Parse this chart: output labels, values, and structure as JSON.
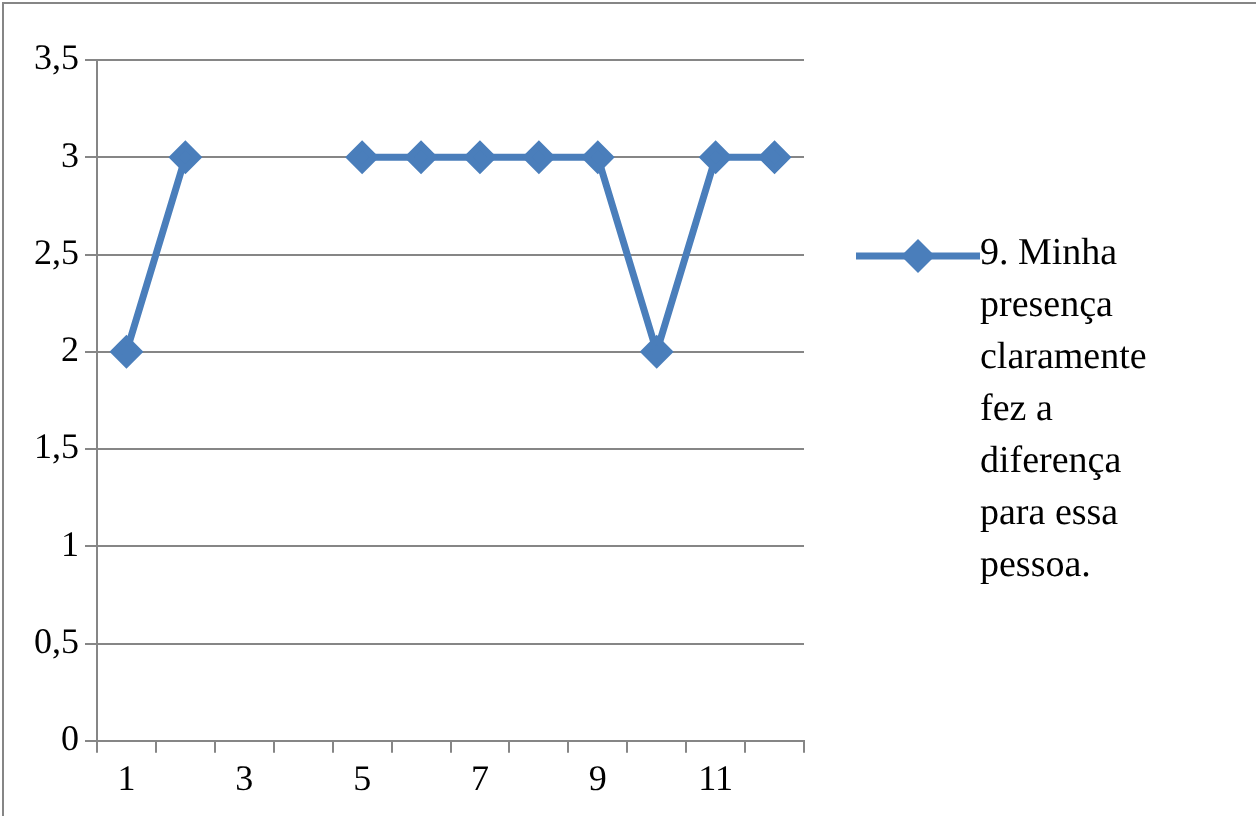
{
  "chart_data": {
    "type": "line",
    "categories": [
      "1",
      null,
      "3",
      null,
      "5",
      null,
      "7",
      null,
      "9",
      null,
      "11",
      null
    ],
    "series": [
      {
        "name": "9. Minha presença claramente fez a diferença para essa pessoa.",
        "color": "#4a7ebb",
        "values": [
          2,
          3,
          null,
          null,
          3,
          3,
          3,
          3,
          3,
          2,
          3,
          3
        ]
      }
    ],
    "ylim": [
      0,
      3.5
    ],
    "yticks": [
      0,
      {
        "value": 0.5,
        "label": "0,5"
      },
      1,
      {
        "value": 1.5,
        "label": "1,5"
      },
      2,
      {
        "value": 2.5,
        "label": "2,5"
      },
      3,
      {
        "value": 3.5,
        "label": "3,5"
      }
    ],
    "grid": "y",
    "legend": "right",
    "marker": "diamond",
    "line_style": "solid"
  }
}
